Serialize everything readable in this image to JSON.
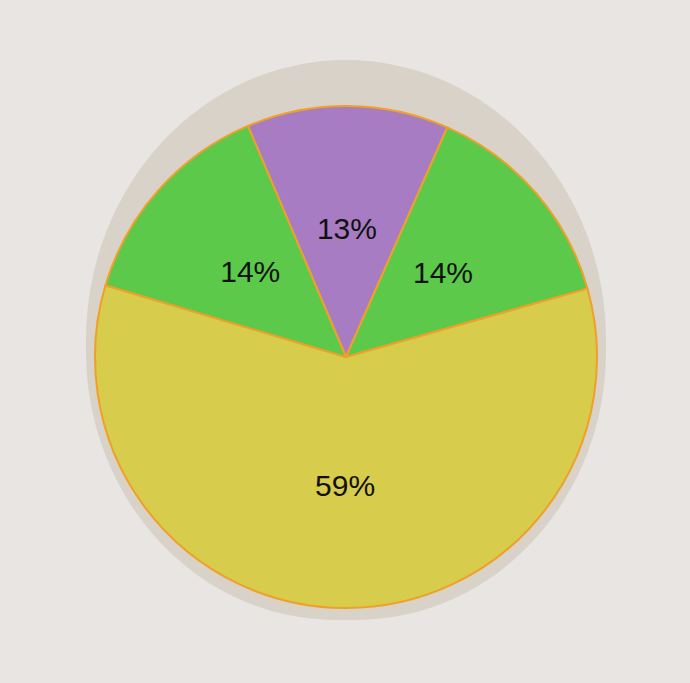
{
  "chart_data": {
    "type": "pie",
    "categories": [
      null,
      null,
      null,
      null
    ],
    "values": [
      13,
      14,
      59,
      14
    ],
    "value_labels": [
      "13%",
      "14%",
      "59%",
      "14%"
    ],
    "colors": [
      "#a77cc2",
      "#5cc94a",
      "#d7cc4b",
      "#5cc94a"
    ],
    "data_labels": true
  }
}
